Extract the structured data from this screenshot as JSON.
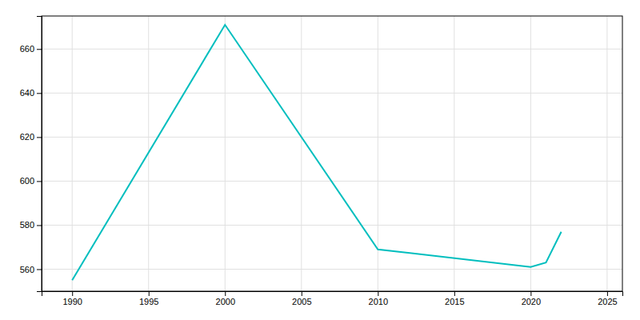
{
  "chart_data": {
    "type": "line",
    "x": [
      1990,
      2000,
      2010,
      2020,
      2021,
      2022
    ],
    "values": [
      555,
      671,
      569,
      561,
      563,
      577
    ],
    "color": "#00BEBE",
    "xlim": [
      1988,
      2026
    ],
    "ylim": [
      550,
      675
    ],
    "xticks": [
      1990,
      1995,
      2000,
      2005,
      2010,
      2015,
      2020,
      2025
    ],
    "yticks": [
      560,
      580,
      600,
      620,
      640,
      660
    ],
    "grid": true
  }
}
